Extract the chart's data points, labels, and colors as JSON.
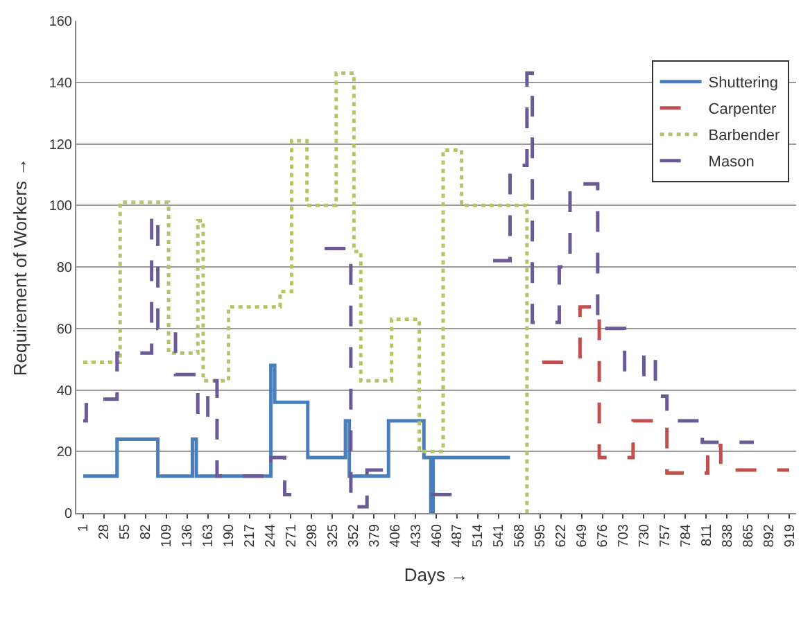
{
  "chart_data": {
    "type": "step",
    "xlabel": "Days →",
    "ylabel": "Requirement of Workers →",
    "xlim": [
      -8,
      928
    ],
    "xticks": [
      1,
      28,
      55,
      82,
      109,
      136,
      163,
      190,
      217,
      244,
      271,
      298,
      325,
      352,
      379,
      406,
      433,
      460,
      487,
      514,
      541,
      568,
      595,
      622,
      649,
      676,
      703,
      730,
      757,
      784,
      811,
      838,
      865,
      892,
      919
    ],
    "ylim": [
      0,
      160
    ],
    "yticks": [
      0,
      20,
      40,
      60,
      80,
      100,
      120,
      140,
      160
    ],
    "grid": "y",
    "legend": "top right",
    "series": [
      {
        "name": "Shuttering",
        "color": "#4a7ebb",
        "line_style": "solid",
        "x": [
          1,
          45,
          98,
          143,
          148,
          245,
          250,
          293,
          342,
          347,
          398,
          444,
          453,
          456,
          556
        ],
        "values": [
          12,
          24,
          12,
          24,
          12,
          48,
          36,
          18,
          30,
          12,
          30,
          18,
          0,
          18,
          18
        ]
      },
      {
        "name": "Carpenter",
        "color": "#c0504d",
        "line_style": "dashed",
        "x": [
          598,
          647,
          672,
          716,
          760,
          813,
          830,
          919
        ],
        "values": [
          49,
          67,
          18,
          30,
          13,
          22,
          14,
          14
        ]
      },
      {
        "name": "Barbender",
        "color": "#b5c46a",
        "line_style": "dotted",
        "x": [
          1,
          49,
          112,
          150,
          157,
          190,
          257,
          272,
          292,
          330,
          353,
          362,
          402,
          438,
          469,
          493,
          578
        ],
        "values": [
          49,
          101,
          52,
          95,
          43,
          67,
          72,
          121,
          100,
          143,
          85,
          43,
          63,
          20,
          118,
          100,
          0
        ]
      },
      {
        "name": "Mason",
        "color": "#6a5a96",
        "line_style": "dashed",
        "x": [
          1,
          5,
          45,
          90,
          98,
          121,
          150,
          163,
          175,
          245,
          263,
          282,
          283,
          315,
          349,
          370,
          411,
          412,
          453,
          493,
          494,
          534,
          556,
          578,
          585,
          620,
          634,
          670,
          705,
          730,
          745,
          760,
          806,
          873
        ],
        "values": [
          30,
          37,
          52,
          97,
          60,
          45,
          30,
          43,
          12,
          18,
          6,
          6,
          null,
          86,
          2,
          14,
          14,
          null,
          6,
          6,
          null,
          82,
          113,
          143,
          62,
          80,
          107,
          60,
          45,
          52,
          38,
          30,
          23,
          23
        ]
      }
    ]
  }
}
